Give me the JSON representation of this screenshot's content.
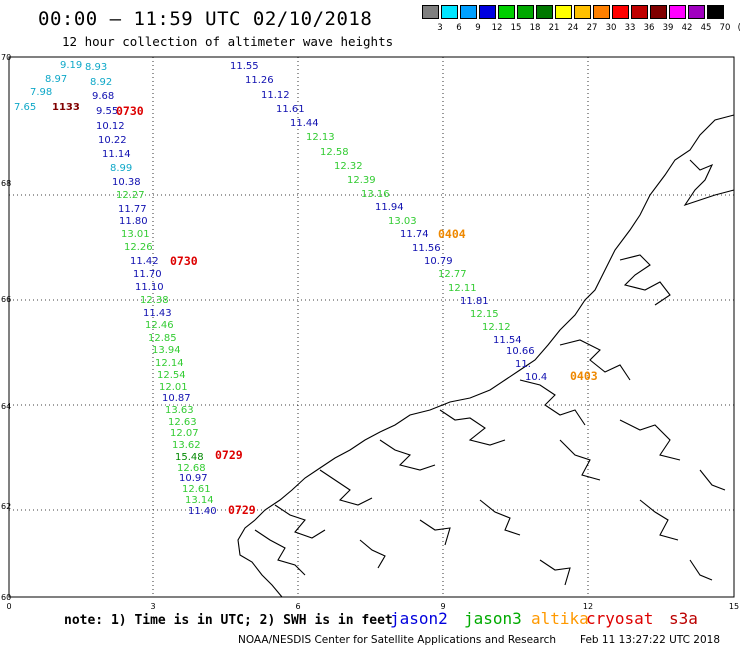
{
  "header": {
    "title": "00:00 – 11:59 UTC 02/10/2018",
    "subtitle": "12 hour collection of altimeter wave heights"
  },
  "legend": {
    "colors": [
      "#7f7f7f",
      "#00e5ff",
      "#00a0ff",
      "#0000e0",
      "#00d000",
      "#00a800",
      "#007800",
      "#ffff00",
      "#ffc000",
      "#ff8000",
      "#ff0000",
      "#c00000",
      "#800000",
      "#ff00ff",
      "#a000c0",
      "#000000"
    ],
    "labels": [
      "3",
      "6",
      "9",
      "12",
      "15",
      "18",
      "21",
      "24",
      "27",
      "30",
      "33",
      "36",
      "39",
      "42",
      "45",
      "70",
      "(ft)"
    ]
  },
  "axes": {
    "x_ticks": [
      "0",
      "3",
      "6",
      "9",
      "12",
      "15"
    ],
    "y_ticks": [
      "70",
      "68",
      "66",
      "64",
      "62",
      "60"
    ]
  },
  "passes": [
    {
      "satellite": "jason3-a",
      "time_label": "0730",
      "time_color": "#dd0000",
      "points": [
        {
          "v": "9.19",
          "c": "#0fa8c8"
        },
        {
          "v": "8.93",
          "c": "#0fa8c8"
        },
        {
          "v": "8.97",
          "c": "#0fa8c8"
        },
        {
          "v": "8.92",
          "c": "#0fa8c8"
        },
        {
          "v": "7.98",
          "c": "#0fa8c8"
        },
        {
          "v": "9.68",
          "c": "#1010b0"
        },
        {
          "v": "7.65",
          "c": "#0fa8c8"
        },
        {
          "v": "1133",
          "c": "#800000"
        },
        {
          "v": "9.55",
          "c": "#1010b0"
        },
        {
          "v": "10.12",
          "c": "#1010b0"
        },
        {
          "v": "10.22",
          "c": "#1010b0"
        },
        {
          "v": "11.14",
          "c": "#1010b0"
        },
        {
          "v": "8.99",
          "c": "#0fa8c8"
        },
        {
          "v": "10.38",
          "c": "#1010b0"
        },
        {
          "v": "12.27",
          "c": "#33cc33"
        },
        {
          "v": "11.77",
          "c": "#1010b0"
        },
        {
          "v": "11.80",
          "c": "#1010b0"
        },
        {
          "v": "13.01",
          "c": "#33cc33"
        },
        {
          "v": "12.26",
          "c": "#33cc33"
        },
        {
          "v": "11.42",
          "c": "#1010b0"
        },
        {
          "v": "11.70",
          "c": "#1010b0"
        },
        {
          "v": "11.10",
          "c": "#1010b0"
        },
        {
          "v": "12.38",
          "c": "#33cc33"
        },
        {
          "v": "11.43",
          "c": "#1010b0"
        },
        {
          "v": "12.46",
          "c": "#33cc33"
        },
        {
          "v": "12.85",
          "c": "#33cc33"
        },
        {
          "v": "13.94",
          "c": "#33cc33"
        },
        {
          "v": "12.14",
          "c": "#33cc33"
        },
        {
          "v": "12.54",
          "c": "#33cc33"
        },
        {
          "v": "12.01",
          "c": "#33cc33"
        },
        {
          "v": "10.87",
          "c": "#1010b0"
        },
        {
          "v": "13.63",
          "c": "#33cc33"
        },
        {
          "v": "12.63",
          "c": "#33cc33"
        },
        {
          "v": "12.07",
          "c": "#33cc33"
        },
        {
          "v": "13.62",
          "c": "#33cc33"
        },
        {
          "v": "15.48",
          "c": "#008800"
        },
        {
          "v": "12.68",
          "c": "#33cc33"
        },
        {
          "v": "10.97",
          "c": "#1010b0"
        },
        {
          "v": "12.61",
          "c": "#33cc33"
        },
        {
          "v": "13.14",
          "c": "#33cc33"
        },
        {
          "v": "11.40",
          "c": "#1010b0"
        }
      ]
    },
    {
      "satellite": "altika",
      "time_label": "0404",
      "time_color": "#ee8800",
      "points": [
        {
          "v": "11.55",
          "c": "#1010b0"
        },
        {
          "v": "11.26",
          "c": "#1010b0"
        },
        {
          "v": "11.12",
          "c": "#1010b0"
        },
        {
          "v": "11.61",
          "c": "#1010b0"
        },
        {
          "v": "11.44",
          "c": "#1010b0"
        },
        {
          "v": "12.13",
          "c": "#33cc33"
        },
        {
          "v": "12.58",
          "c": "#33cc33"
        },
        {
          "v": "12.32",
          "c": "#33cc33"
        },
        {
          "v": "12.39",
          "c": "#33cc33"
        },
        {
          "v": "13.16",
          "c": "#33cc33"
        },
        {
          "v": "11.94",
          "c": "#1010b0"
        },
        {
          "v": "13.03",
          "c": "#33cc33"
        },
        {
          "v": "11.74",
          "c": "#1010b0"
        },
        {
          "v": "11.56",
          "c": "#1010b0"
        },
        {
          "v": "10.79",
          "c": "#1010b0"
        },
        {
          "v": "12.77",
          "c": "#33cc33"
        },
        {
          "v": "12.11",
          "c": "#33cc33"
        },
        {
          "v": "11.81",
          "c": "#1010b0"
        },
        {
          "v": "12.15",
          "c": "#33cc33"
        },
        {
          "v": "12.12",
          "c": "#33cc33"
        },
        {
          "v": "11.54",
          "c": "#1010b0"
        },
        {
          "v": "10.66",
          "c": "#1010b0"
        },
        {
          "v": "11.",
          "c": "#1010b0"
        },
        {
          "v": "10.4",
          "c": "#1010b0"
        }
      ]
    }
  ],
  "time_labels_extra": [
    "0730",
    "0729",
    "0729",
    "0403"
  ],
  "note": "note: 1) Time is in UTC; 2) SWH is in feet",
  "satellites": [
    {
      "name": "jason2",
      "color": "#0000dd"
    },
    {
      "name": "jason3",
      "color": "#00aa00"
    },
    {
      "name": "altika",
      "color": "#ff9900"
    },
    {
      "name": "cryosat",
      "color": "#dd0000"
    },
    {
      "name": "s3a",
      "color": "#bb0000"
    }
  ],
  "footer": {
    "left": "NOAA/NESDIS Center for Satellite Applications and Research",
    "right": "Feb 11 13:27:22 UTC 2018"
  }
}
